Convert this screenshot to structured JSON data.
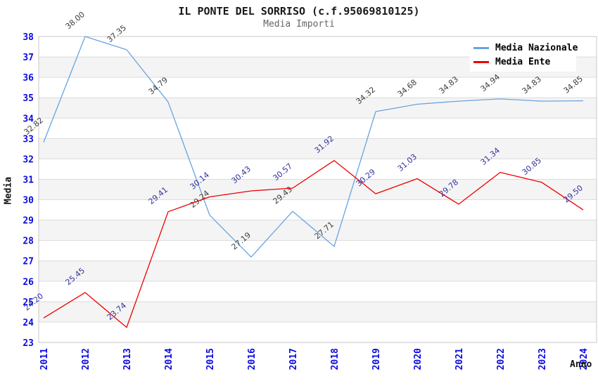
{
  "title": "IL PONTE DEL SORRISO (c.f.95069810125)",
  "subtitle": "Media Importi",
  "legend": [
    {
      "label": "Media Nazionale",
      "color": "#69a3e0"
    },
    {
      "label": "Media Ente",
      "color": "#ee0000"
    }
  ],
  "axes": {
    "y_title": "Media",
    "x_title": "Anno"
  },
  "colors": {
    "tick_label": "#0b0be0",
    "band_gray": "#f4f4f4",
    "gridline": "#dcdcdc",
    "plot_border": "#c8c8c8",
    "title": "#1a1a1a",
    "subtitle": "#666666"
  },
  "chart_data": {
    "type": "line",
    "title": "IL PONTE DEL SORRISO (c.f.95069810125)",
    "subtitle": "Media Importi",
    "xlabel": "Anno",
    "ylabel": "Media",
    "ylim": [
      23,
      38
    ],
    "y_step": 1,
    "grid": "horizontal, alternating 1-unit shaded bands",
    "legend_position": "top-right inside plot",
    "categories": [
      "2011",
      "2012",
      "2013",
      "2014",
      "2015",
      "2016",
      "2017",
      "2018",
      "2019",
      "2020",
      "2021",
      "2022",
      "2023",
      "2024"
    ],
    "series": [
      {
        "name": "Media Nazionale",
        "color": "#69a3e0",
        "label_color": "#3c3c3c",
        "values": [
          32.82,
          38.0,
          37.35,
          34.79,
          29.24,
          27.19,
          29.43,
          27.71,
          34.32,
          34.68,
          34.83,
          34.94,
          34.83,
          34.85
        ]
      },
      {
        "name": "Media Ente",
        "color": "#ee0000",
        "label_color": "#3333a0",
        "values": [
          24.2,
          25.45,
          23.74,
          29.41,
          30.14,
          30.43,
          30.57,
          31.92,
          30.29,
          31.03,
          29.78,
          31.34,
          30.85,
          29.5
        ]
      }
    ]
  }
}
